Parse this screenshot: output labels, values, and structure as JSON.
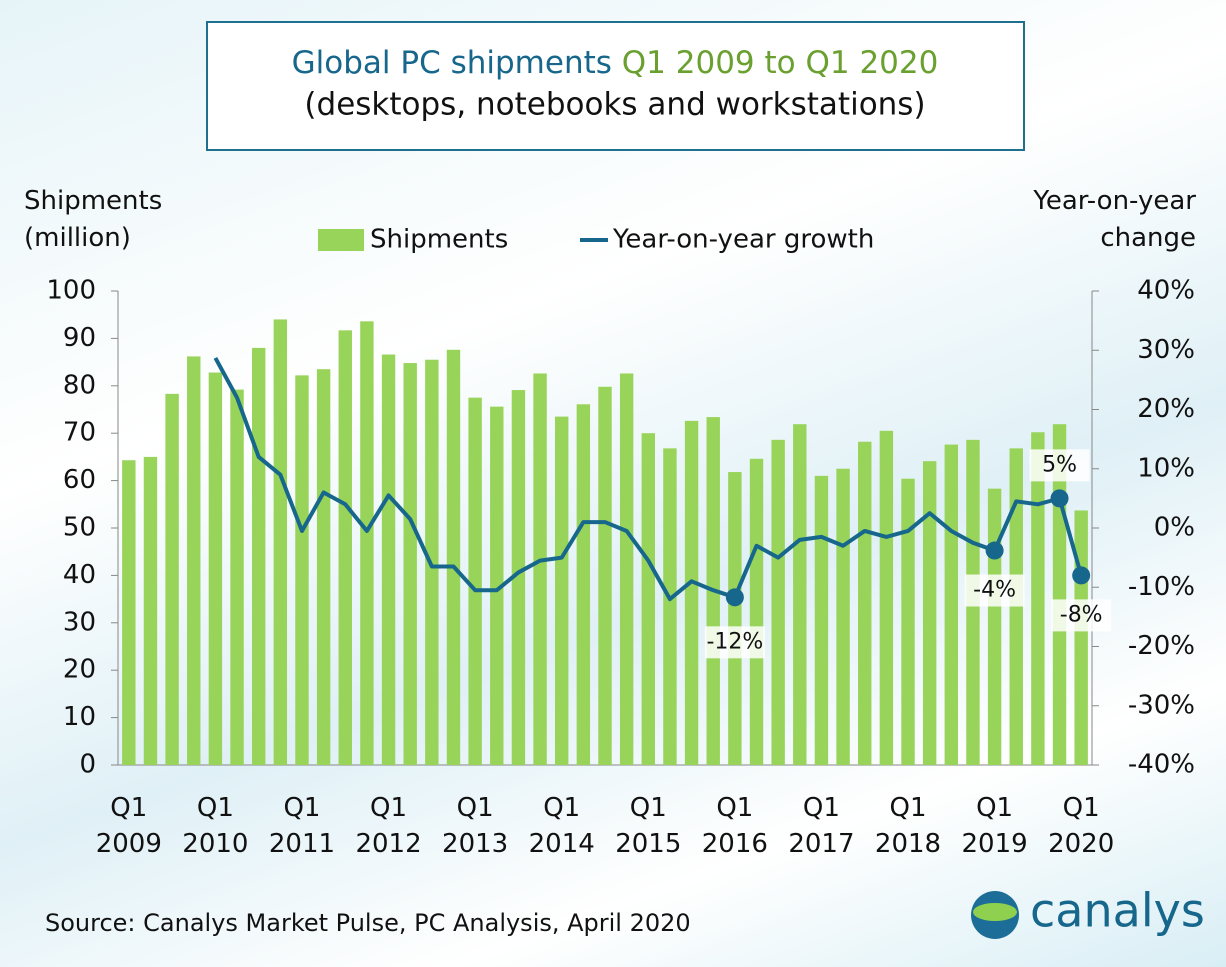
{
  "chart_data": {
    "type": "bar-line",
    "title": {
      "part1": "Global PC shipments",
      "part2": "Q1 2009 to Q1 2020",
      "line2": "(desktops, notebooks and workstations)"
    },
    "y_label": "Shipments (million)",
    "y2_label": "Year-on-year change",
    "source": "Source: Canalys Market Pulse, PC Analysis, April 2020",
    "brand": "canalys",
    "categories": [
      "Q1 2009",
      null,
      null,
      null,
      "Q1 2010",
      null,
      null,
      null,
      "Q1 2011",
      null,
      null,
      null,
      "Q1 2012",
      null,
      null,
      null,
      "Q1 2013",
      null,
      null,
      null,
      "Q1 2014",
      null,
      null,
      null,
      "Q1 2015",
      null,
      null,
      null,
      "Q1 2016",
      null,
      null,
      null,
      "Q1 2017",
      null,
      null,
      null,
      "Q1 2018",
      null,
      null,
      null,
      "Q1 2019",
      null,
      null,
      null,
      "Q1 2020"
    ],
    "series": [
      {
        "name": "Shipments",
        "type": "bar",
        "color": "#98d35a",
        "values": [
          64.3,
          65,
          78.3,
          86.2,
          82.8,
          79.2,
          88,
          94,
          82.2,
          83.5,
          91.7,
          93.6,
          86.6,
          84.8,
          85.5,
          87.6,
          77.5,
          75.6,
          79.1,
          82.6,
          73.5,
          76.1,
          79.8,
          82.6,
          70,
          66.8,
          72.6,
          73.4,
          61.8,
          64.6,
          68.6,
          71.9,
          61,
          62.5,
          68.2,
          70.5,
          60.4,
          64.1,
          67.6,
          68.6,
          58.3,
          66.8,
          70.2,
          71.9,
          53.7
        ]
      },
      {
        "name": "Year-on-year growth",
        "type": "line",
        "axis": "y2",
        "color": "#17678c",
        "values": [
          null,
          null,
          null,
          null,
          28.7,
          22,
          12,
          9,
          -0.5,
          6,
          4,
          -0.5,
          5.5,
          1.5,
          -6.5,
          -6.5,
          -10.5,
          -10.5,
          -7.5,
          -5.5,
          -5,
          1,
          1,
          -0.5,
          -5.5,
          -12,
          -9,
          -10.5,
          -11.7,
          -3,
          -5,
          -2,
          -1.5,
          -3,
          -0.5,
          -1.5,
          -0.5,
          2.5,
          -0.5,
          -2.5,
          -3.8,
          4.5,
          4,
          5,
          -8
        ],
        "value_labels": [
          null,
          null,
          null,
          null,
          null,
          null,
          null,
          null,
          null,
          null,
          null,
          null,
          null,
          null,
          null,
          null,
          null,
          null,
          null,
          null,
          null,
          null,
          null,
          null,
          null,
          null,
          null,
          null,
          "-12%",
          null,
          null,
          null,
          null,
          null,
          null,
          null,
          null,
          null,
          null,
          null,
          "-4%",
          null,
          null,
          "5%",
          "-8%"
        ]
      }
    ],
    "ylim": [
      0,
      100
    ],
    "yticks": [
      0,
      10,
      20,
      30,
      40,
      50,
      60,
      70,
      80,
      90,
      100
    ],
    "y2lim": [
      -40,
      40
    ],
    "y2ticks": [
      {
        "value": -40,
        "label": "-40%"
      },
      {
        "value": -30,
        "label": "-30%"
      },
      {
        "value": -20,
        "label": "-20%"
      },
      {
        "value": -10,
        "label": "-10%"
      },
      {
        "value": 0,
        "label": "0%"
      },
      {
        "value": 10,
        "label": "10%"
      },
      {
        "value": 20,
        "label": "20%"
      },
      {
        "value": 30,
        "label": "30%"
      },
      {
        "value": 40,
        "label": "40%"
      }
    ]
  }
}
